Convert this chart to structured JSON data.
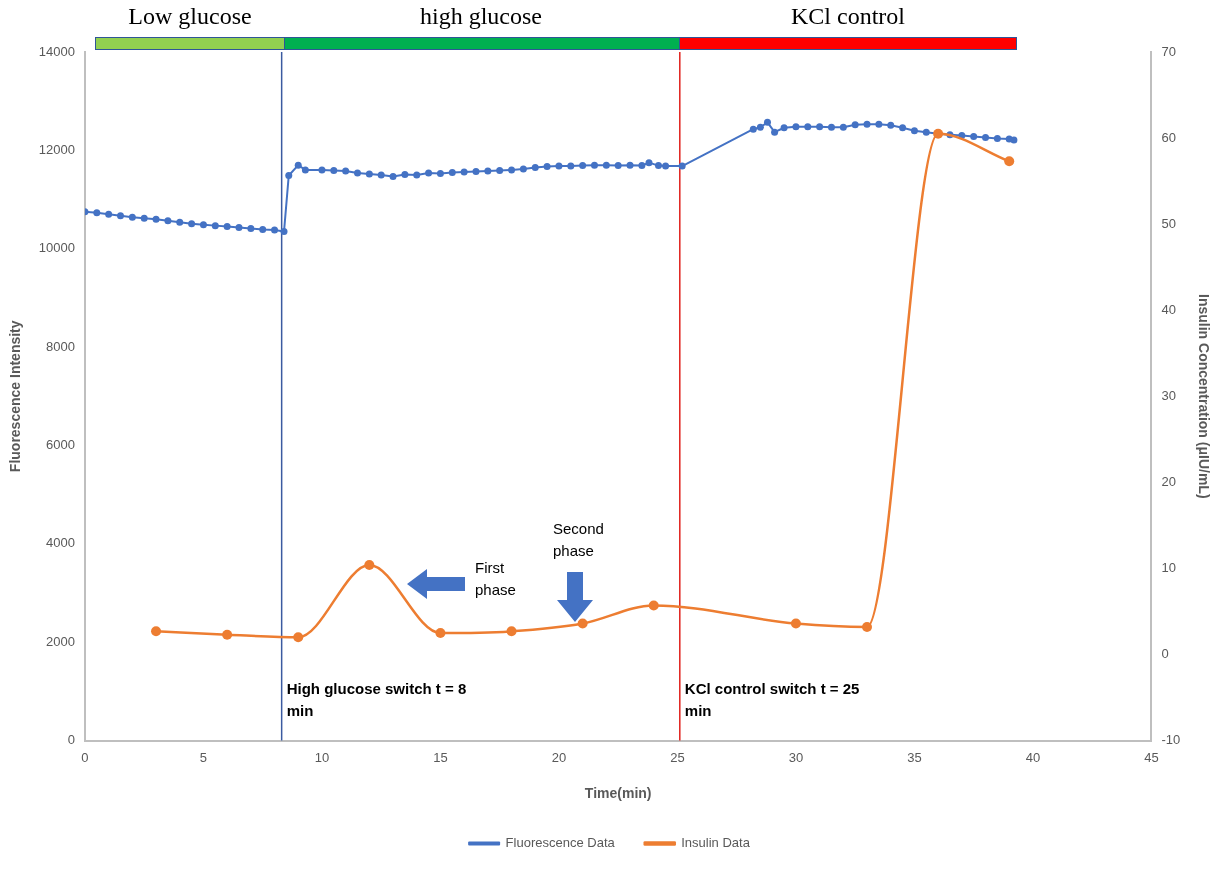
{
  "chart_data": {
    "type": "line",
    "xlabel": "Time(min)",
    "ylabel": "Fluorescence Intensity",
    "y2label": "Insulin Concentration (μIU/mL)",
    "series": [
      {
        "name": "Fluorescence Data",
        "color": "#4472c4",
        "type": "line",
        "x": [
          0,
          0.5,
          1,
          1.5,
          2,
          2.5,
          3,
          3.5,
          4,
          4.5,
          5,
          5.5,
          6,
          6.5,
          7,
          7.5,
          8,
          8.4,
          8.6,
          9,
          9.3,
          10,
          10.5,
          11,
          11.5,
          12,
          12.5,
          13,
          13.5,
          14,
          14.5,
          15,
          15.5,
          16,
          16.5,
          17,
          17.5,
          18,
          18.5,
          19,
          19.5,
          20,
          20.5,
          21,
          21.5,
          22,
          22.5,
          23,
          23.5,
          23.8,
          24.2,
          24.5,
          25.2,
          28.2,
          28.5,
          28.8,
          29.1,
          29.5,
          30,
          30.5,
          31,
          31.5,
          32,
          32.5,
          33,
          33.5,
          34,
          34.5,
          35,
          35.5,
          36,
          36.5,
          37,
          37.5,
          38,
          38.5,
          39,
          39.2
        ],
        "values": [
          10750,
          10730,
          10700,
          10670,
          10640,
          10620,
          10600,
          10570,
          10540,
          10510,
          10490,
          10470,
          10450,
          10430,
          10410,
          10390,
          10380,
          10350,
          11490,
          11700,
          11600,
          11600,
          11590,
          11580,
          11540,
          11520,
          11500,
          11470,
          11510,
          11500,
          11540,
          11530,
          11550,
          11560,
          11570,
          11580,
          11590,
          11600,
          11620,
          11650,
          11670,
          11680,
          11680,
          11690,
          11700,
          11700,
          11690,
          11700,
          11690,
          11750,
          11690,
          11680,
          11680,
          12430,
          12470,
          12570,
          12370,
          12460,
          12480,
          12480,
          12480,
          12470,
          12470,
          12520,
          12530,
          12530,
          12510,
          12460,
          12400,
          12370,
          12340,
          12320,
          12300,
          12280,
          12260,
          12240,
          12230,
          12210
        ]
      },
      {
        "name": "Insulin Data",
        "color": "#ed7d31",
        "type": "line",
        "axis": "y2",
        "x": [
          3,
          6,
          9,
          12,
          15,
          18,
          21,
          24,
          30,
          33,
          36,
          39
        ],
        "values": [
          2.7,
          2.3,
          2.0,
          10.4,
          2.5,
          2.7,
          3.6,
          5.7,
          3.6,
          3.2,
          60.5,
          57.3
        ]
      }
    ],
    "xlim": [
      0,
      45
    ],
    "xticks": [
      0,
      5,
      10,
      15,
      20,
      25,
      30,
      35,
      40,
      45
    ],
    "ylim": [
      0,
      14000
    ],
    "yticks": [
      0,
      2000,
      4000,
      6000,
      8000,
      10000,
      12000,
      14000
    ],
    "y2lim": [
      -10,
      70
    ],
    "y2ticks": [
      -10,
      0,
      10,
      20,
      30,
      40,
      50,
      60,
      70
    ],
    "grid": false,
    "legend": "bottom",
    "marker": "circle",
    "line_style": "solid",
    "ref_lines": [
      {
        "axis": "x",
        "value": 8.3,
        "label": "High glucose switch t = 8 min",
        "color": "#3b5aa0"
      },
      {
        "axis": "x",
        "value": 25.1,
        "label": "KCl control switch t = 25 min",
        "color": "#e0201b"
      }
    ],
    "annotations": [
      "First phase",
      "Second phase",
      "Low glucose",
      "high glucose",
      "KCl control"
    ]
  }
}
